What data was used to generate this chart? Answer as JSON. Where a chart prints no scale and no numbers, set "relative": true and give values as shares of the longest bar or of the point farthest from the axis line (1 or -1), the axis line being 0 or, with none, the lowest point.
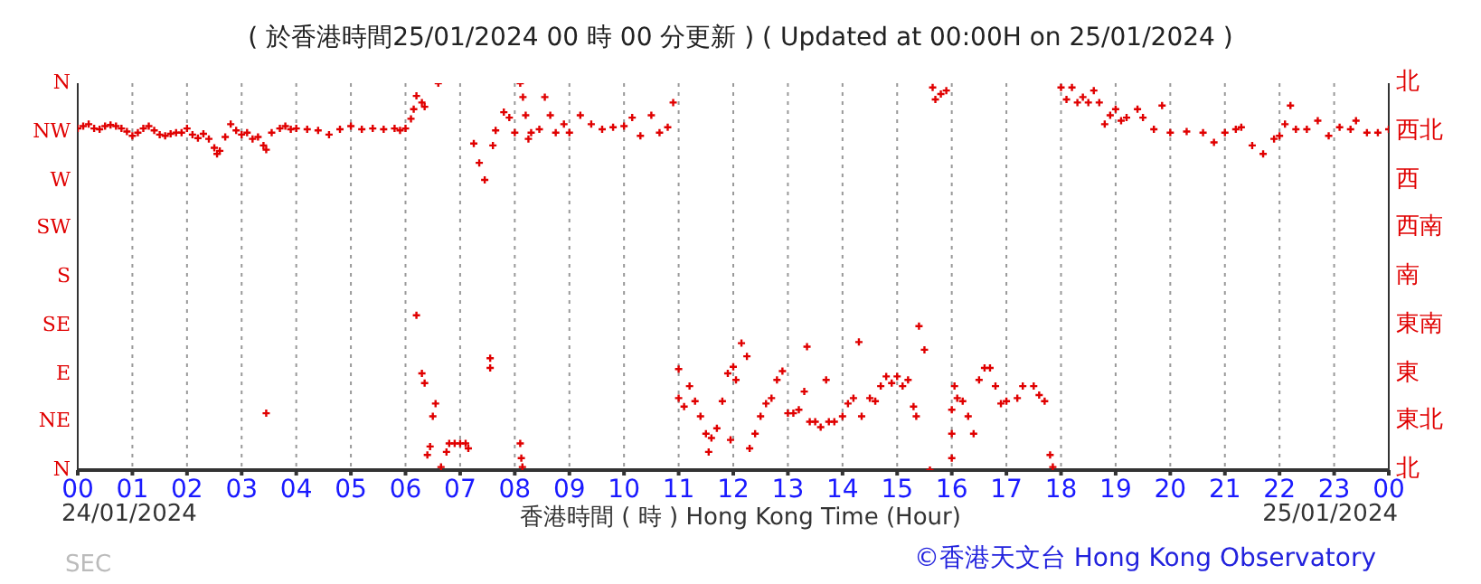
{
  "chart_data": {
    "type": "scatter",
    "title": "( 於香港時間25/01/2024 00 時 00 分更新 ) ( Updated at 00:00H on 25/01/2024 )",
    "xlabel": "香港時間 ( 時 )  Hong Kong Time (Hour)",
    "annotations": [
      "24/01/2024",
      "25/01/2024",
      "©香港天文台 Hong Kong Observatory",
      "SEC",
      "N",
      "NE",
      "E",
      "SE",
      "S",
      "SW",
      "W",
      "NW",
      "N",
      "北",
      "東北",
      "東",
      "東南",
      "南",
      "西南",
      "西",
      "西北",
      "北"
    ],
    "relative": true,
    "xlim": [
      0,
      24
    ],
    "xticks": [
      {
        "value": 0,
        "label": "00"
      },
      {
        "value": 1,
        "label": "01"
      },
      {
        "value": 2,
        "label": "02"
      },
      {
        "value": 3,
        "label": "03"
      },
      {
        "value": 4,
        "label": "04"
      },
      {
        "value": 5,
        "label": "05"
      },
      {
        "value": 6,
        "label": "06"
      },
      {
        "value": 7,
        "label": "07"
      },
      {
        "value": 8,
        "label": "08"
      },
      {
        "value": 9,
        "label": "09"
      },
      {
        "value": 10,
        "label": "10"
      },
      {
        "value": 11,
        "label": "11"
      },
      {
        "value": 12,
        "label": "12"
      },
      {
        "value": 13,
        "label": "13"
      },
      {
        "value": 14,
        "label": "14"
      },
      {
        "value": 15,
        "label": "15"
      },
      {
        "value": 16,
        "label": "16"
      },
      {
        "value": 17,
        "label": "17"
      },
      {
        "value": 18,
        "label": "18"
      },
      {
        "value": 19,
        "label": "19"
      },
      {
        "value": 20,
        "label": "20"
      },
      {
        "value": 21,
        "label": "21"
      },
      {
        "value": 22,
        "label": "22"
      },
      {
        "value": 23,
        "label": "23"
      },
      {
        "value": 24,
        "label": "00"
      }
    ],
    "grid": true,
    "marker": "cross",
    "series": [
      {
        "color": "#e00000",
        "x": [
          0,
          0.1,
          0.2,
          0.3,
          0.4,
          0.5,
          0.6,
          0.7,
          0.8,
          0.9,
          1.0,
          1.1,
          1.2,
          1.3,
          1.4,
          1.5,
          1.6,
          1.7,
          1.8,
          1.9,
          2.0,
          2.1,
          2.2,
          2.3,
          2.4,
          2.5,
          2.55,
          2.6,
          2.7,
          2.8,
          2.9,
          3.0,
          3.1,
          3.2,
          3.3,
          3.4,
          3.45,
          3.45,
          3.55,
          3.7,
          3.8,
          3.9,
          4.0,
          4.2,
          4.4,
          4.6,
          4.8,
          5.0,
          5.2,
          5.4,
          5.6,
          5.8,
          5.9,
          6.0,
          6.1,
          6.15,
          6.2,
          6.3,
          6.35,
          6.6,
          6.2,
          6.3,
          6.35,
          6.4,
          6.45,
          6.5,
          6.55,
          6.65,
          6.75,
          6.8,
          6.9,
          7.0,
          7.1,
          7.15,
          7.25,
          7.35,
          7.45,
          7.55,
          7.55,
          7.6,
          7.65,
          7.8,
          7.9,
          8.0,
          8.1,
          8.15,
          8.2,
          8.25,
          8.3,
          8.45,
          8.55,
          8.65,
          8.75,
          8.9,
          9.0,
          9.2,
          9.4,
          9.6,
          9.8,
          10.0,
          10.15,
          10.3,
          10.5,
          10.65,
          10.8,
          10.9,
          8.1,
          8.12,
          8.14,
          11.0,
          11.0,
          11.1,
          11.2,
          11.3,
          11.4,
          11.5,
          11.55,
          11.6,
          11.7,
          11.8,
          11.9,
          11.95,
          12.0,
          12.05,
          12.15,
          12.25,
          12.3,
          12.4,
          12.5,
          12.6,
          12.7,
          12.8,
          12.9,
          13.0,
          13.1,
          13.2,
          13.3,
          13.35,
          13.4,
          13.5,
          13.6,
          13.7,
          13.75,
          13.85,
          14.0,
          14.1,
          14.2,
          14.3,
          14.35,
          14.5,
          14.6,
          14.7,
          14.8,
          14.9,
          15.0,
          15.1,
          15.2,
          15.3,
          15.35,
          15.4,
          15.5,
          15.6,
          15.65,
          15.7,
          15.8,
          15.9,
          16.0,
          16.0,
          16.0,
          16.05,
          16.1,
          16.2,
          16.3,
          16.4,
          16.5,
          16.6,
          16.7,
          16.8,
          16.9,
          17.0,
          17.2,
          17.3,
          17.5,
          17.6,
          17.7,
          17.8,
          17.85,
          18.0,
          18.1,
          18.2,
          18.3,
          18.4,
          18.5,
          18.6,
          18.7,
          18.8,
          18.9,
          19.0,
          19.1,
          19.2,
          19.4,
          19.5,
          19.7,
          19.85,
          20.0,
          20.3,
          20.6,
          20.8,
          21.0,
          21.2,
          21.3,
          21.5,
          21.7,
          21.9,
          22.0,
          22.1,
          22.2,
          22.3,
          22.5,
          22.7,
          22.9,
          23.1,
          23.3,
          23.4,
          23.6,
          23.8,
          24.0
        ],
        "values": [
          0.883,
          0.889,
          0.894,
          0.883,
          0.881,
          0.889,
          0.892,
          0.889,
          0.883,
          0.875,
          0.864,
          0.872,
          0.883,
          0.889,
          0.878,
          0.867,
          0.864,
          0.869,
          0.872,
          0.872,
          0.883,
          0.867,
          0.858,
          0.869,
          0.856,
          0.833,
          0.817,
          0.825,
          0.861,
          0.894,
          0.878,
          0.867,
          0.872,
          0.856,
          0.861,
          0.839,
          0.828,
          0.147,
          0.872,
          0.883,
          0.889,
          0.881,
          0.883,
          0.881,
          0.878,
          0.867,
          0.881,
          0.889,
          0.881,
          0.883,
          0.881,
          0.883,
          0.878,
          0.883,
          0.908,
          0.933,
          0.967,
          0.95,
          0.939,
          1,
          0.4,
          0.25,
          0.225,
          0.039,
          0.061,
          0.139,
          0.172,
          0.008,
          0.047,
          0.069,
          0.069,
          0.069,
          0.069,
          0.056,
          0.844,
          0.794,
          0.75,
          0.289,
          0.264,
          0.839,
          0.878,
          0.925,
          0.911,
          0.872,
          1,
          0.964,
          0.917,
          0.856,
          0.872,
          0.881,
          0.964,
          0.917,
          0.872,
          0.894,
          0.872,
          0.917,
          0.894,
          0.881,
          0.886,
          0.889,
          0.911,
          0.864,
          0.917,
          0.872,
          0.886,
          0.95,
          0.069,
          0.031,
          0.008,
          0.261,
          0.186,
          0.164,
          0.217,
          0.178,
          0.139,
          0.094,
          0.047,
          0.083,
          0.108,
          0.178,
          0.25,
          0.078,
          0.267,
          0.233,
          0.328,
          0.294,
          0.056,
          0.094,
          0.139,
          0.172,
          0.186,
          0.233,
          0.256,
          0.147,
          0.147,
          0.156,
          0.203,
          0.319,
          0.125,
          0.125,
          0.111,
          0.233,
          0.125,
          0.125,
          0.139,
          0.172,
          0.186,
          0.331,
          0.139,
          0.186,
          0.178,
          0.217,
          0.242,
          0.225,
          0.242,
          0.217,
          0.233,
          0.164,
          0.139,
          0.372,
          0.311,
          0,
          0.989,
          0.958,
          0.972,
          0.981,
          0.156,
          0.094,
          0.031,
          0.217,
          0.186,
          0.178,
          0.139,
          0.094,
          0.233,
          0.264,
          0.264,
          0.217,
          0.172,
          0.178,
          0.186,
          0.217,
          0.217,
          0.194,
          0.178,
          0.039,
          0.008,
          0.989,
          0.958,
          0.989,
          0.95,
          0.964,
          0.95,
          0.981,
          0.95,
          0.894,
          0.917,
          0.933,
          0.903,
          0.911,
          0.933,
          0.911,
          0.881,
          0.942,
          0.872,
          0.875,
          0.872,
          0.847,
          0.872,
          0.881,
          0.886,
          0.839,
          0.817,
          0.856,
          0.864,
          0.894,
          0.942,
          0.881,
          0.881,
          0.903,
          0.864,
          0.886,
          0.881,
          0.903,
          0.872,
          0.872,
          0.881
        ]
      }
    ]
  }
}
